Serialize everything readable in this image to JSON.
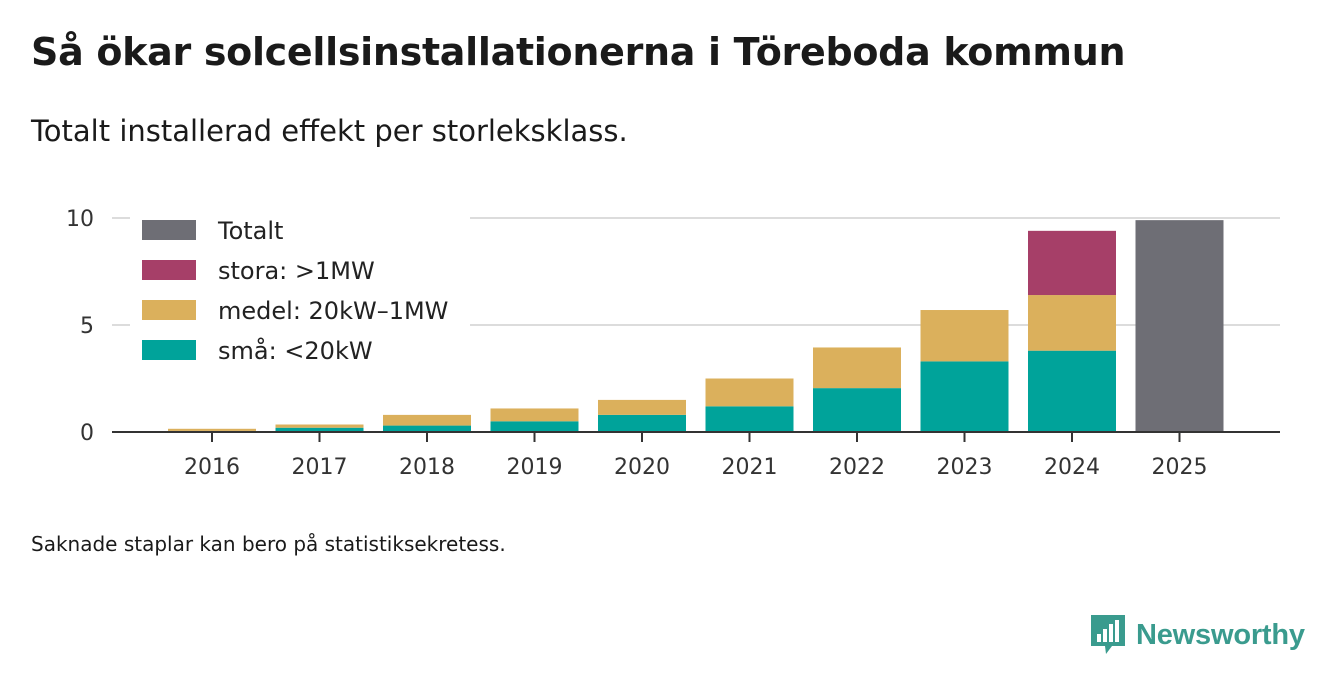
{
  "title": "Så ökar solcellsinstallationerna i Töreboda kommun",
  "subtitle": "Totalt installerad effekt per storleksklass.",
  "footnote": "Saknade staplar kan bero på statistiksekretess.",
  "brand": {
    "name": "Newsworthy",
    "icon": "newsworthy-logo-icon",
    "color": "#3a9b8e"
  },
  "chart_data": {
    "type": "bar",
    "stacked": true,
    "title": "Så ökar solcellsinstallationerna i Töreboda kommun",
    "subtitle": "Totalt installerad effekt per storleksklass.",
    "xlabel": "",
    "ylabel": "",
    "ylim": [
      0,
      10
    ],
    "yticks": [
      0,
      5,
      10
    ],
    "grid": true,
    "legend_position": "top-left",
    "categories": [
      "2016",
      "2017",
      "2018",
      "2019",
      "2020",
      "2021",
      "2022",
      "2023",
      "2024",
      "2025"
    ],
    "series": [
      {
        "name": "små: <20kW",
        "color": "#00a39a",
        "values": [
          0.05,
          0.2,
          0.3,
          0.5,
          0.8,
          1.2,
          2.05,
          3.3,
          3.8,
          null
        ]
      },
      {
        "name": "medel: 20kW–1MW",
        "color": "#dbb05c",
        "values": [
          0.1,
          0.15,
          0.5,
          0.6,
          0.7,
          1.3,
          1.9,
          2.4,
          2.6,
          null
        ]
      },
      {
        "name": "stora: >1MW",
        "color": "#a63f68",
        "values": [
          null,
          null,
          null,
          null,
          null,
          null,
          null,
          null,
          3.0,
          null
        ]
      },
      {
        "name": "Totalt",
        "color": "#6e6e75",
        "values": [
          null,
          null,
          null,
          null,
          null,
          null,
          null,
          null,
          null,
          9.9
        ]
      }
    ],
    "legend_order": [
      "Totalt",
      "stora: >1MW",
      "medel: 20kW–1MW",
      "små: <20kW"
    ]
  }
}
